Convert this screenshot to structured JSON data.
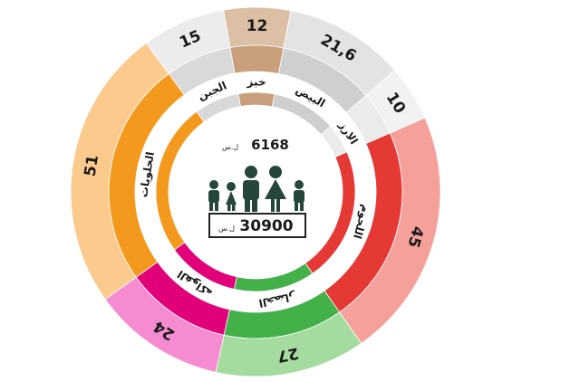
{
  "chart_data": {
    "type": "pie",
    "title": "",
    "center": {
      "inner_total": "6168",
      "outer_total": "30900",
      "unit": "ل.س"
    },
    "categories": [
      "خبز",
      "البيض",
      "الارز",
      "اللحوم",
      "الخضار",
      "الفواكه",
      "الحلويات",
      "الجبن"
    ],
    "values": [
      "12",
      "21,6",
      "10",
      "45",
      "27",
      "24",
      "51",
      "15"
    ],
    "colors": {
      "inner_ring": [
        "#c99f7b",
        "#cfcfcf",
        "#ebebeb",
        "#e53935",
        "#43b049",
        "#e2007a",
        "#f39a1e",
        "#d9d9d9"
      ],
      "middle_ring": [
        "#c99f7b",
        "#cfcfcf",
        "#ebebeb",
        "#e53935",
        "#43b049",
        "#e2007a",
        "#f39a1e",
        "#d9d9d9"
      ],
      "outer_ring": [
        "#dcc0a6",
        "#e3e3e3",
        "#f2f2f2",
        "#f5a19b",
        "#a3dc9e",
        "#f48ccf",
        "#fbcb8e",
        "#ececec"
      ]
    }
  }
}
